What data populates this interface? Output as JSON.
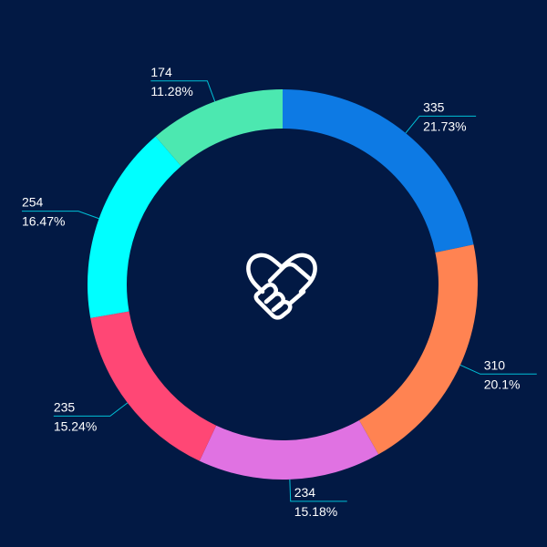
{
  "chart_data": {
    "type": "pie",
    "variant": "donut",
    "title": "",
    "slices": [
      {
        "value": 335,
        "percent_label": "21.73%",
        "color": "#0d7ae4"
      },
      {
        "value": 310,
        "percent_label": "20.1%",
        "color": "#ff8352"
      },
      {
        "value": 234,
        "percent_label": "15.18%",
        "color": "#e072e2"
      },
      {
        "value": 235,
        "percent_label": "15.24%",
        "color": "#ff4775"
      },
      {
        "value": 254,
        "percent_label": "16.47%",
        "color": "#00ffff"
      },
      {
        "value": 174,
        "percent_label": "11.28%",
        "color": "#4ce8b0"
      }
    ],
    "start_angle": "top",
    "direction": "clockwise",
    "leader_line_color": "#00c0d6",
    "background_color": "#021944",
    "center_icon": "handshake-heart-icon",
    "center_icon_color": "#ffffff"
  }
}
